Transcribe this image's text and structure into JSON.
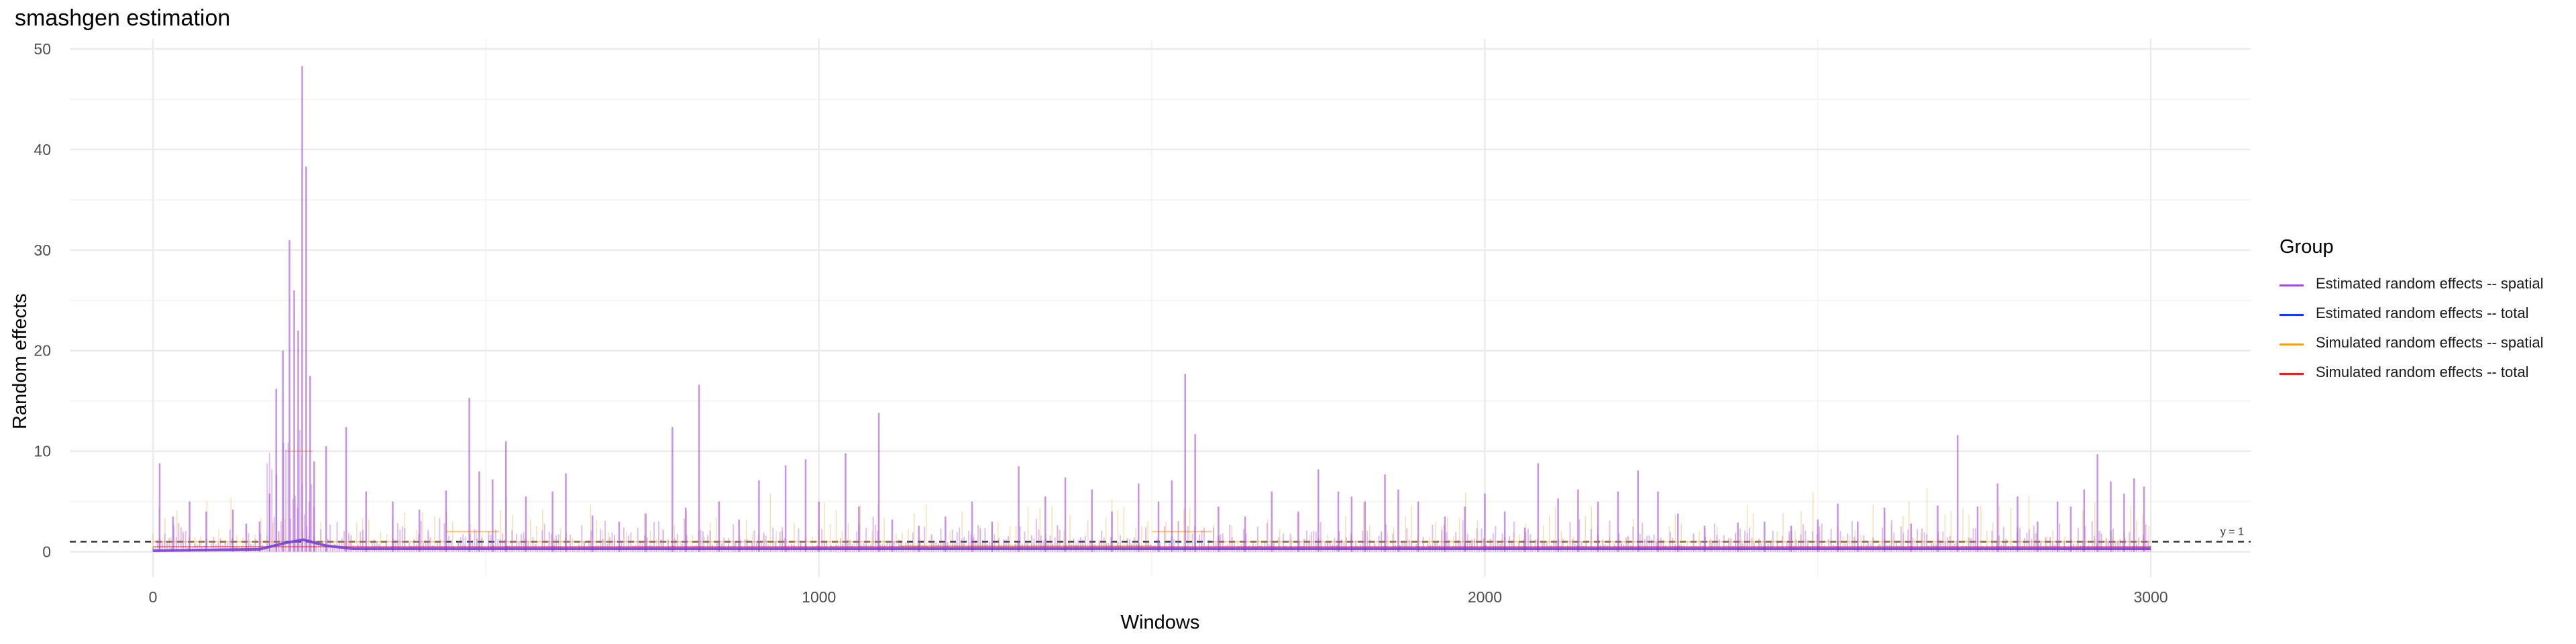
{
  "chart_data": {
    "type": "line",
    "title": "smashgen estimation",
    "xlabel": "Windows",
    "ylabel": "Random effects",
    "xlim": [
      -125,
      3150
    ],
    "ylim": [
      -2.5,
      51
    ],
    "x_ticks": [
      0,
      1000,
      2000,
      3000
    ],
    "y_ticks": [
      0,
      10,
      20,
      30,
      40,
      50
    ],
    "grid": true,
    "legend_position": "right",
    "legend_title": "Group",
    "reference_line": {
      "y": 1,
      "label": "y = 1",
      "style": "dashed"
    },
    "series": [
      {
        "name": "Estimated random effects -- spatial",
        "color": "#a64bd8",
        "spikes": [
          [
            10,
            8.8
          ],
          [
            30,
            3.5
          ],
          [
            55,
            5.0
          ],
          [
            80,
            4.0
          ],
          [
            120,
            4.2
          ],
          [
            140,
            2.8
          ],
          [
            160,
            3.0
          ],
          [
            175,
            5.8
          ],
          [
            185,
            16.2
          ],
          [
            195,
            20.0
          ],
          [
            205,
            31.0
          ],
          [
            212,
            26.0
          ],
          [
            218,
            22.0
          ],
          [
            224,
            48.3
          ],
          [
            230,
            38.3
          ],
          [
            236,
            17.5
          ],
          [
            242,
            9.0
          ],
          [
            260,
            10.5
          ],
          [
            290,
            12.4
          ],
          [
            320,
            6.0
          ],
          [
            360,
            5.0
          ],
          [
            400,
            4.2
          ],
          [
            440,
            6.1
          ],
          [
            475,
            15.3
          ],
          [
            490,
            8.0
          ],
          [
            510,
            7.2
          ],
          [
            530,
            11.0
          ],
          [
            560,
            5.5
          ],
          [
            600,
            6.0
          ],
          [
            620,
            7.8
          ],
          [
            660,
            3.6
          ],
          [
            700,
            3.0
          ],
          [
            740,
            3.8
          ],
          [
            780,
            12.4
          ],
          [
            800,
            4.4
          ],
          [
            820,
            16.6
          ],
          [
            850,
            5.0
          ],
          [
            880,
            3.2
          ],
          [
            910,
            7.1
          ],
          [
            950,
            8.6
          ],
          [
            980,
            9.2
          ],
          [
            1000,
            5.0
          ],
          [
            1040,
            9.8
          ],
          [
            1060,
            4.5
          ],
          [
            1090,
            13.8
          ],
          [
            1110,
            3.2
          ],
          [
            1150,
            2.6
          ],
          [
            1190,
            3.5
          ],
          [
            1230,
            5.0
          ],
          [
            1260,
            3.0
          ],
          [
            1300,
            8.5
          ],
          [
            1340,
            5.5
          ],
          [
            1370,
            7.4
          ],
          [
            1410,
            6.2
          ],
          [
            1440,
            4.0
          ],
          [
            1480,
            6.8
          ],
          [
            1510,
            5.0
          ],
          [
            1530,
            7.1
          ],
          [
            1550,
            17.7
          ],
          [
            1565,
            11.7
          ],
          [
            1600,
            4.5
          ],
          [
            1640,
            3.5
          ],
          [
            1680,
            6.0
          ],
          [
            1720,
            4.0
          ],
          [
            1750,
            8.2
          ],
          [
            1780,
            6.0
          ],
          [
            1800,
            5.5
          ],
          [
            1820,
            5.0
          ],
          [
            1850,
            7.7
          ],
          [
            1870,
            6.2
          ],
          [
            1900,
            5.0
          ],
          [
            1940,
            3.5
          ],
          [
            1970,
            4.5
          ],
          [
            2000,
            5.8
          ],
          [
            2030,
            4.0
          ],
          [
            2060,
            2.4
          ],
          [
            2080,
            8.8
          ],
          [
            2110,
            5.3
          ],
          [
            2140,
            6.2
          ],
          [
            2170,
            5.0
          ],
          [
            2200,
            6.0
          ],
          [
            2230,
            8.1
          ],
          [
            2260,
            6.0
          ],
          [
            2290,
            3.8
          ],
          [
            2330,
            2.6
          ],
          [
            2380,
            2.9
          ],
          [
            2420,
            3.0
          ],
          [
            2460,
            2.6
          ],
          [
            2500,
            3.2
          ],
          [
            2530,
            4.8
          ],
          [
            2560,
            3.0
          ],
          [
            2600,
            4.4
          ],
          [
            2640,
            2.8
          ],
          [
            2680,
            4.6
          ],
          [
            2710,
            11.6
          ],
          [
            2740,
            4.5
          ],
          [
            2770,
            6.8
          ],
          [
            2800,
            5.5
          ],
          [
            2830,
            3.0
          ],
          [
            2860,
            5.0
          ],
          [
            2880,
            4.5
          ],
          [
            2900,
            6.2
          ],
          [
            2920,
            9.7
          ],
          [
            2940,
            7.0
          ],
          [
            2960,
            5.8
          ],
          [
            2975,
            7.3
          ],
          [
            2990,
            6.5
          ]
        ]
      },
      {
        "name": "Estimated random effects -- total",
        "color": "#1a3af5",
        "baseline": [
          [
            0,
            0.1
          ],
          [
            160,
            0.25
          ],
          [
            200,
            0.9
          ],
          [
            226,
            1.2
          ],
          [
            260,
            0.6
          ],
          [
            300,
            0.3
          ],
          [
            1000,
            0.3
          ],
          [
            2000,
            0.3
          ],
          [
            3000,
            0.3
          ]
        ]
      },
      {
        "name": "Simulated random effects -- spatial",
        "color": "#f0a020",
        "segments": [
          {
            "x": [
              0,
              200
            ],
            "y": 1.0
          },
          {
            "x": [
              200,
              240
            ],
            "y": 10.0
          },
          {
            "x": [
              240,
              440
            ],
            "y": 1.0
          },
          {
            "x": [
              440,
              520
            ],
            "y": 2.0
          },
          {
            "x": [
              520,
              1120
            ],
            "y": 1.0
          },
          {
            "x": [
              1120,
              1500
            ],
            "y": 0.6
          },
          {
            "x": [
              1500,
              1590
            ],
            "y": 2.0
          },
          {
            "x": [
              1590,
              3000
            ],
            "y": 1.0
          }
        ]
      },
      {
        "name": "Simulated random effects -- total",
        "color": "#e8201a",
        "baseline": [
          [
            0,
            0.5
          ],
          [
            3000,
            0.5
          ]
        ]
      }
    ]
  }
}
